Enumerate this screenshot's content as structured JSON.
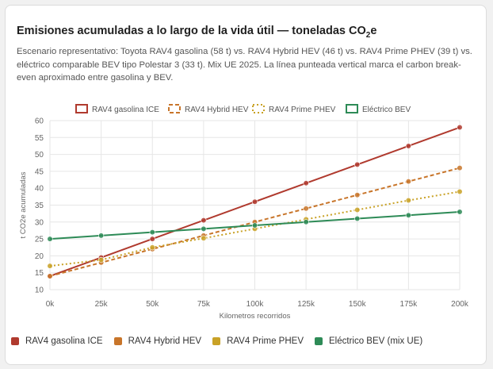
{
  "header": {
    "title_main": "Emisiones acumuladas a lo largo de la vida útil — toneladas CO",
    "title_sub": "2",
    "title_end": "e",
    "subtitle": "Escenario representativo: Toyota RAV4 gasolina (58 t) vs. RAV4 Hybrid HEV (46 t) vs. RAV4 Prime PHEV (39 t) vs. eléctrico comparable BEV tipo Polestar 3 (33 t). Mix UE 2025. La línea punteada vertical marca el carbon break-even aproximado entre gasolina y BEV."
  },
  "chart_data": {
    "type": "line",
    "x": [
      "0k",
      "25k",
      "50k",
      "75k",
      "100k",
      "125k",
      "150k",
      "175k",
      "200k"
    ],
    "xlabel": "Kilometros recorridos",
    "ylabel": "t CO2e acumuladas",
    "ylim": [
      10,
      60
    ],
    "yticks": [
      10,
      15,
      20,
      25,
      30,
      35,
      40,
      45,
      50,
      55,
      60
    ],
    "grid": true,
    "legend": "top",
    "series": [
      {
        "name": "RAV4 gasolina ICE",
        "color": "#b03a2e",
        "dash": "solid",
        "values": [
          14,
          19.5,
          25,
          30.5,
          36,
          41.5,
          47,
          52.5,
          58
        ]
      },
      {
        "name": "RAV4 Hybrid HEV",
        "color": "#c8752a",
        "dash": "dashed",
        "values": [
          14,
          18,
          22,
          26,
          30,
          34,
          38,
          42,
          46
        ]
      },
      {
        "name": "RAV4 Prime PHEV",
        "color": "#c9a227",
        "dash": "dotted",
        "values": [
          17,
          18.8,
          22.5,
          25.2,
          28,
          30.8,
          33.6,
          36.4,
          39
        ]
      },
      {
        "name": "Eléctrico BEV",
        "color": "#2e8b57",
        "dash": "solid",
        "values": [
          25,
          26,
          27,
          28,
          29,
          30,
          31,
          32,
          33
        ]
      }
    ]
  },
  "legend_bottom": [
    {
      "label": "RAV4 gasolina ICE",
      "color": "#b03a2e"
    },
    {
      "label": "RAV4 Hybrid HEV",
      "color": "#c8752a"
    },
    {
      "label": "RAV4 Prime PHEV",
      "color": "#c9a227"
    },
    {
      "label": "Eléctrico BEV (mix UE)",
      "color": "#2e8b57"
    }
  ]
}
